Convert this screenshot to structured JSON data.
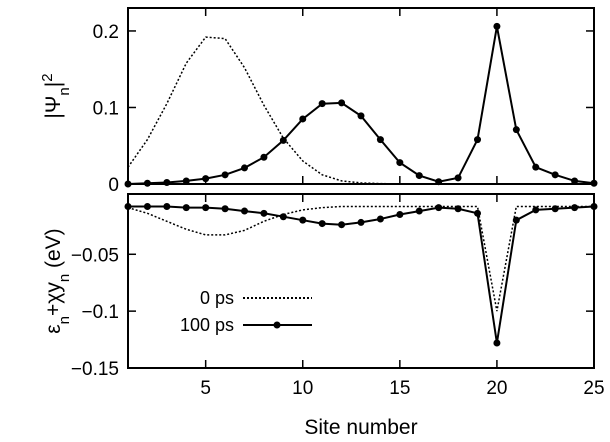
{
  "chart_data": [
    {
      "type": "line",
      "panel": "top",
      "ylabel": "|Ψn|²",
      "ylabel_parts": {
        "bar_left": "|",
        "psi": "Ψ",
        "sub": "n",
        "bar_right": "|",
        "sup": "2"
      },
      "xlim": [
        1,
        25
      ],
      "ylim": [
        0,
        0.23
      ],
      "yticks": [
        {
          "value": 0,
          "label": "0"
        },
        {
          "value": 0.1,
          "label": "0.1"
        },
        {
          "value": 0.2,
          "label": "0.2"
        }
      ],
      "series": [
        {
          "name": "0 ps",
          "style": "dotted",
          "x": [
            1,
            2,
            3,
            4,
            5,
            6,
            7,
            8,
            9,
            10,
            11,
            12,
            13,
            14,
            15,
            16,
            17,
            18,
            19,
            20,
            21,
            22,
            23,
            24,
            25
          ],
          "values": [
            0.022,
            0.058,
            0.105,
            0.158,
            0.192,
            0.19,
            0.152,
            0.103,
            0.06,
            0.03,
            0.012,
            0.004,
            0.0015,
            0.0005,
            0.0001,
            0,
            0,
            0,
            0,
            0,
            0,
            0,
            0,
            0,
            0
          ]
        },
        {
          "name": "100 ps",
          "style": "solid-markers",
          "x": [
            1,
            2,
            3,
            4,
            5,
            6,
            7,
            8,
            9,
            10,
            11,
            12,
            13,
            14,
            15,
            16,
            17,
            18,
            19,
            20,
            21,
            22,
            23,
            24,
            25
          ],
          "values": [
            0,
            0.001,
            0.002,
            0.004,
            0.007,
            0.012,
            0.021,
            0.035,
            0.057,
            0.085,
            0.105,
            0.106,
            0.089,
            0.058,
            0.028,
            0.011,
            0.003,
            0.008,
            0.058,
            0.206,
            0.071,
            0.022,
            0.012,
            0.004,
            0.001
          ]
        }
      ]
    },
    {
      "type": "line",
      "panel": "bottom",
      "xlabel": "Site number",
      "ylabel": "εn+χyn (eV)",
      "ylabel_parts": {
        "eps": "ε",
        "sub1": "n",
        "plus": "+χy",
        "sub2": "n",
        "unit": " (eV)"
      },
      "xlim": [
        1,
        25
      ],
      "ylim": [
        -0.15,
        0.003
      ],
      "xticks": [
        {
          "value": 5,
          "label": "5"
        },
        {
          "value": 10,
          "label": "10"
        },
        {
          "value": 15,
          "label": "15"
        },
        {
          "value": 20,
          "label": "20"
        },
        {
          "value": 25,
          "label": "25"
        }
      ],
      "yticks": [
        {
          "value": -0.05,
          "label": "−0.05"
        },
        {
          "value": -0.1,
          "label": "−0.1"
        },
        {
          "value": -0.15,
          "label": "−0.15"
        }
      ],
      "series": [
        {
          "name": "0 ps",
          "style": "dotted",
          "x": [
            1,
            2,
            3,
            4,
            5,
            6,
            7,
            8,
            9,
            10,
            11,
            12,
            13,
            14,
            15,
            16,
            17,
            18,
            19,
            20,
            21,
            22,
            23,
            24,
            25
          ],
          "values": [
            -0.009,
            -0.014,
            -0.021,
            -0.028,
            -0.033,
            -0.033,
            -0.029,
            -0.021,
            -0.015,
            -0.011,
            -0.009,
            -0.008,
            -0.008,
            -0.008,
            -0.008,
            -0.008,
            -0.008,
            -0.008,
            -0.008,
            -0.1,
            -0.008,
            -0.008,
            -0.008,
            -0.008,
            -0.008
          ]
        },
        {
          "name": "100 ps",
          "style": "solid-markers",
          "x": [
            1,
            2,
            3,
            4,
            5,
            6,
            7,
            8,
            9,
            10,
            11,
            12,
            13,
            14,
            15,
            16,
            17,
            18,
            19,
            20,
            21,
            22,
            23,
            24,
            25
          ],
          "values": [
            -0.008,
            -0.008,
            -0.008,
            -0.009,
            -0.009,
            -0.01,
            -0.012,
            -0.014,
            -0.017,
            -0.02,
            -0.023,
            -0.024,
            -0.022,
            -0.019,
            -0.015,
            -0.012,
            -0.009,
            -0.01,
            -0.014,
            -0.128,
            -0.02,
            -0.011,
            -0.01,
            -0.009,
            -0.008
          ]
        }
      ],
      "legend": {
        "placement": "lower-left",
        "entries": [
          {
            "label": "0 ps",
            "style": "dotted"
          },
          {
            "label": "100 ps",
            "style": "solid-markers"
          }
        ]
      }
    }
  ]
}
